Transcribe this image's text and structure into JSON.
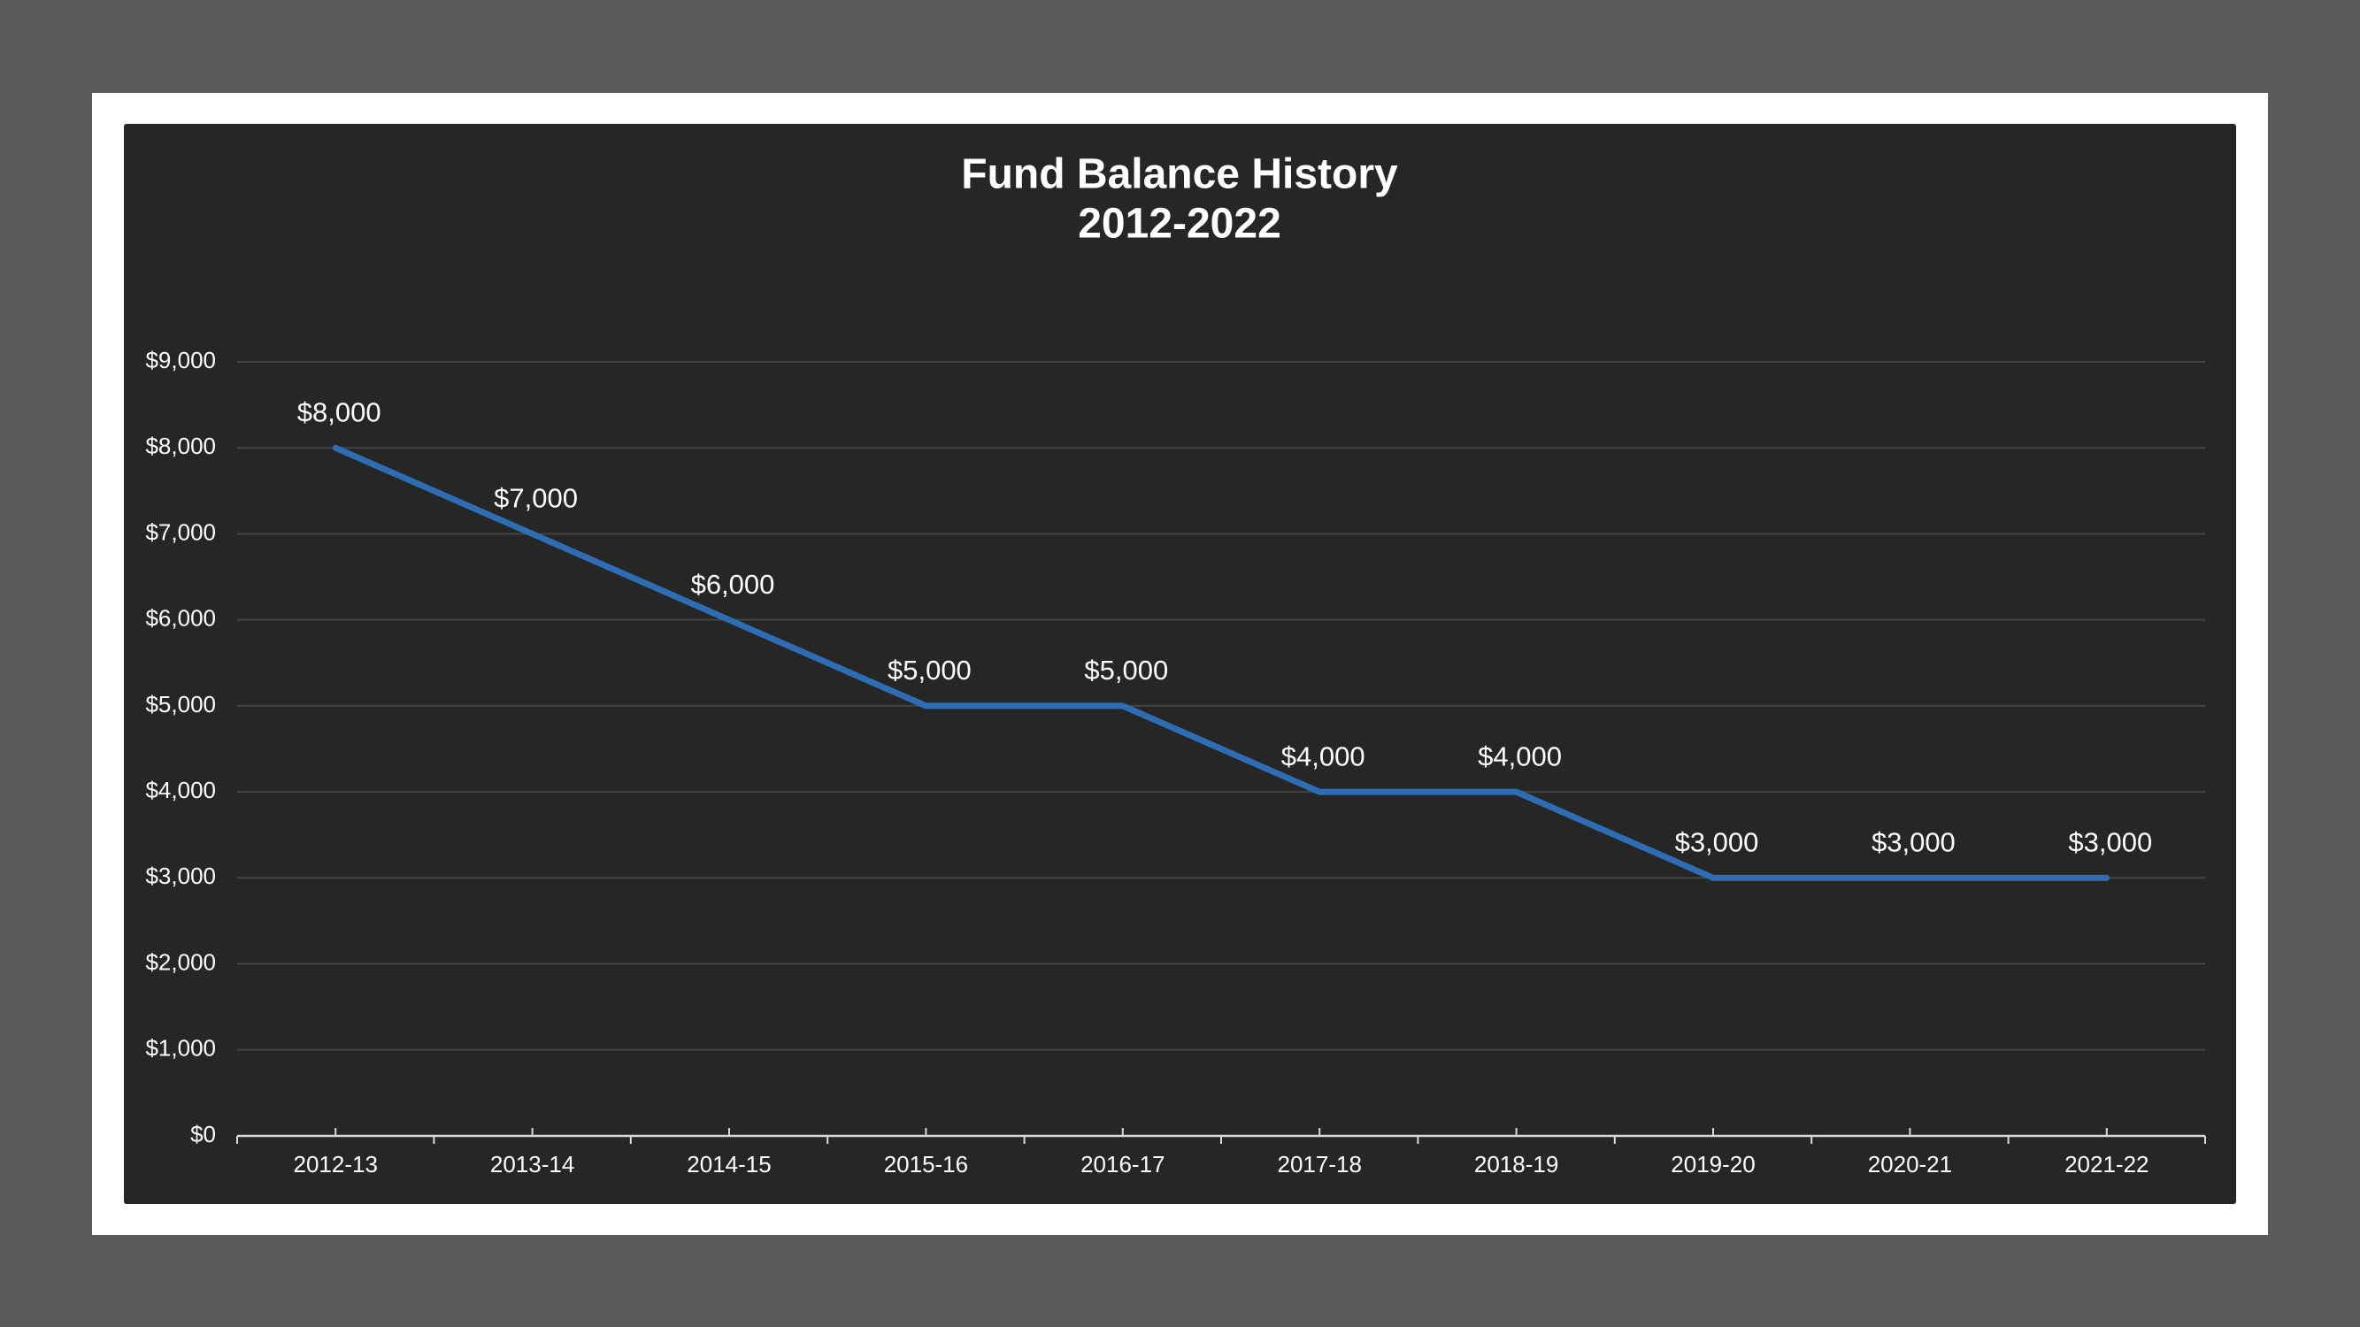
{
  "chart_data": {
    "type": "line",
    "title": "Fund Balance History",
    "subtitle": "2012-2022",
    "xlabel": "",
    "ylabel": "",
    "categories": [
      "2012-13",
      "2013-14",
      "2014-15",
      "2015-16",
      "2016-17",
      "2017-18",
      "2018-19",
      "2019-20",
      "2020-21",
      "2021-22"
    ],
    "series": [
      {
        "values": [
          8000,
          7000,
          6000,
          5000,
          5000,
          4000,
          4000,
          3000,
          3000,
          3000
        ],
        "data_labels": [
          "$8,000",
          "$7,000",
          "$6,000",
          "$5,000",
          "$5,000",
          "$4,000",
          "$4,000",
          "$3,000",
          "$3,000",
          "$3,000"
        ]
      }
    ],
    "ylim": [
      0,
      9000
    ],
    "yticks": [
      0,
      1000,
      2000,
      3000,
      4000,
      5000,
      6000,
      7000,
      8000,
      9000
    ],
    "ytick_labels": [
      "$0",
      "$1,000",
      "$2,000",
      "$3,000",
      "$4,000",
      "$5,000",
      "$6,000",
      "$7,000",
      "$8,000",
      "$9,000"
    ],
    "grid": true,
    "legend": "none",
    "colors": {
      "line": "#2e6db3",
      "gridline": "#444444",
      "axis": "#d9d9d9",
      "text": "#ffffff",
      "panel_background": "#262626",
      "outer_background": "#5a5a5a",
      "frame": "#ffffff"
    }
  }
}
